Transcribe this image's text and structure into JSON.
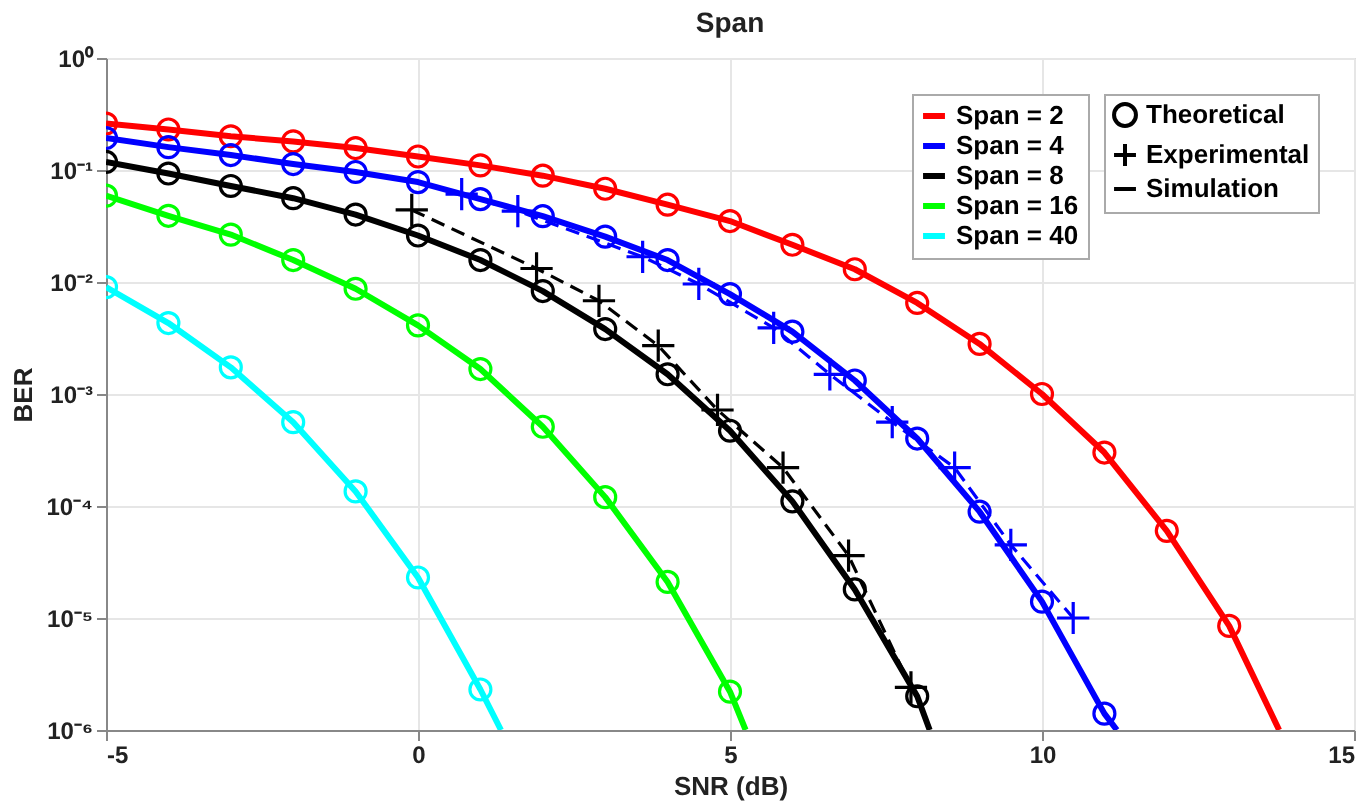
{
  "chart_data": {
    "type": "line",
    "title": "Span",
    "xlabel": "SNR (dB)",
    "ylabel": "BER",
    "log": "y",
    "grid": true,
    "legend": "top right",
    "xlim": [
      -5,
      15
    ],
    "xticks": [
      -5,
      0,
      5,
      10,
      15
    ],
    "ylim": [
      1e-06,
      1
    ],
    "yticks": [
      {
        "value": 1e-06,
        "label": "10⁻⁶"
      },
      {
        "value": 1e-05,
        "label": "10⁻⁵"
      },
      {
        "value": 0.0001,
        "label": "10⁻⁴"
      },
      {
        "value": 0.001,
        "label": "10⁻³"
      },
      {
        "value": 0.01,
        "label": "10⁻²"
      },
      {
        "value": 0.1,
        "label": "10⁻¹"
      },
      {
        "value": 1,
        "label": "10⁰"
      }
    ],
    "series": [
      {
        "name": "Span = 2",
        "type": "line",
        "marker": "none",
        "line_style": "solid",
        "color": "#ff0000",
        "x": [
          -5,
          -4,
          -3,
          -2,
          -1,
          0,
          1,
          2,
          3,
          4,
          5,
          6,
          7,
          8,
          9,
          10,
          11,
          12,
          13,
          13.8
        ],
        "values": [
          0.26,
          0.23,
          0.2,
          0.18,
          0.157,
          0.132,
          0.11,
          0.089,
          0.068,
          0.049,
          0.035,
          0.0215,
          0.013,
          0.0065,
          0.0028,
          0.001,
          0.0003,
          6e-05,
          8.5e-06,
          1e-06
        ]
      },
      {
        "type": "scatter",
        "marker": "circle",
        "color": "#ff0000",
        "x": [
          -5,
          -4,
          -3,
          -2,
          -1,
          0,
          1,
          2,
          3,
          4,
          5,
          6,
          7,
          8,
          9,
          10,
          11,
          12,
          13
        ],
        "values": [
          0.26,
          0.23,
          0.2,
          0.18,
          0.157,
          0.132,
          0.11,
          0.089,
          0.068,
          0.049,
          0.035,
          0.0215,
          0.013,
          0.0065,
          0.0028,
          0.001,
          0.0003,
          6e-05,
          8.5e-06
        ]
      },
      {
        "name": "Span = 4",
        "type": "line",
        "marker": "none",
        "line_style": "solid",
        "color": "#0000ff",
        "x": [
          -5,
          -4,
          -3,
          -2,
          -1,
          0,
          1,
          2,
          3,
          4,
          5,
          6,
          7,
          8,
          9,
          10,
          11,
          11.2
        ],
        "values": [
          0.193,
          0.16,
          0.136,
          0.113,
          0.096,
          0.078,
          0.055,
          0.0387,
          0.0254,
          0.0157,
          0.0078,
          0.0036,
          0.00132,
          0.0004,
          8.9e-05,
          1.4e-05,
          1.4e-06,
          1e-06
        ]
      },
      {
        "type": "scatter",
        "marker": "circle",
        "color": "#0000ff",
        "x": [
          -5,
          -4,
          -3,
          -2,
          -1,
          0,
          1,
          2,
          3,
          4,
          5,
          6,
          7,
          8,
          9,
          10,
          11
        ],
        "values": [
          0.193,
          0.16,
          0.136,
          0.113,
          0.096,
          0.078,
          0.055,
          0.0387,
          0.0254,
          0.0157,
          0.0078,
          0.0036,
          0.00132,
          0.0004,
          8.9e-05,
          1.4e-05,
          1.4e-06
        ]
      },
      {
        "type": "line",
        "marker": "cross",
        "line_style": "dashed",
        "color": "#0000ff",
        "x": [
          0.7,
          1.6,
          3.6,
          4.5,
          5.7,
          6.6,
          7.6,
          8.6,
          9.5,
          10.5
        ],
        "values": [
          0.061,
          0.043,
          0.0168,
          0.0096,
          0.0039,
          0.0015,
          0.00056,
          0.00022,
          4.5e-05,
          1e-05
        ]
      },
      {
        "name": "Span = 8",
        "type": "line",
        "marker": "none",
        "line_style": "solid",
        "color": "#000000",
        "x": [
          -5,
          -4,
          -3,
          -2,
          -1,
          0,
          1,
          2,
          3,
          4,
          5,
          6,
          7,
          8,
          8.2
        ],
        "values": [
          0.118,
          0.093,
          0.072,
          0.056,
          0.04,
          0.026,
          0.0157,
          0.0083,
          0.0038,
          0.0015,
          0.00047,
          0.00011,
          1.8e-05,
          2e-06,
          1e-06
        ]
      },
      {
        "name": "Theoretical",
        "type": "scatter",
        "marker": "circle",
        "color": "#000000",
        "x": [
          -5,
          -4,
          -3,
          -2,
          -1,
          0,
          1,
          2,
          3,
          4,
          5,
          6,
          7,
          8
        ],
        "values": [
          0.118,
          0.093,
          0.072,
          0.056,
          0.04,
          0.026,
          0.0157,
          0.0083,
          0.0038,
          0.0015,
          0.00047,
          0.00011,
          1.8e-05,
          2e-06
        ]
      },
      {
        "name": "Experimental",
        "type": "line",
        "marker": "cross",
        "line_style": "dashed",
        "color": "#000000",
        "x": [
          -0.1,
          1.9,
          2.9,
          3.85,
          4.8,
          5.85,
          6.9,
          7.9
        ],
        "values": [
          0.044,
          0.0132,
          0.0068,
          0.0027,
          0.00072,
          0.00022,
          3.6e-05,
          2.4e-06
        ]
      },
      {
        "name": "Simulation",
        "type": "line",
        "marker": "none",
        "line_style": "solid",
        "color": "#000000"
      },
      {
        "name": "Span = 16",
        "type": "line",
        "marker": "none",
        "line_style": "solid",
        "color": "#00ff00",
        "x": [
          -5,
          -4,
          -3,
          -2,
          -1,
          0,
          1,
          2,
          3,
          4,
          5,
          5.25
        ],
        "values": [
          0.059,
          0.039,
          0.0265,
          0.0157,
          0.0087,
          0.0041,
          0.00167,
          0.00051,
          0.00012,
          2.1e-05,
          2.2e-06,
          1e-06
        ]
      },
      {
        "type": "scatter",
        "marker": "circle",
        "color": "#00ff00",
        "x": [
          -5,
          -4,
          -3,
          -2,
          -1,
          0,
          1,
          2,
          3,
          4,
          5
        ],
        "values": [
          0.059,
          0.039,
          0.0265,
          0.0157,
          0.0087,
          0.0041,
          0.00167,
          0.00051,
          0.00012,
          2.1e-05,
          2.2e-06
        ]
      },
      {
        "name": "Span = 40",
        "type": "line",
        "marker": "none",
        "line_style": "solid",
        "color": "#00ffff",
        "x": [
          -5,
          -4,
          -3,
          -2,
          -1,
          0,
          1,
          1.33
        ],
        "values": [
          0.009,
          0.0043,
          0.00173,
          0.00056,
          0.000135,
          2.3e-05,
          2.3e-06,
          1e-06
        ]
      },
      {
        "type": "scatter",
        "marker": "circle",
        "color": "#00ffff",
        "x": [
          -5,
          -4,
          -3,
          -2,
          -1,
          0,
          1
        ],
        "values": [
          0.009,
          0.0043,
          0.00173,
          0.00056,
          0.000135,
          2.3e-05,
          2.3e-06
        ]
      }
    ]
  }
}
